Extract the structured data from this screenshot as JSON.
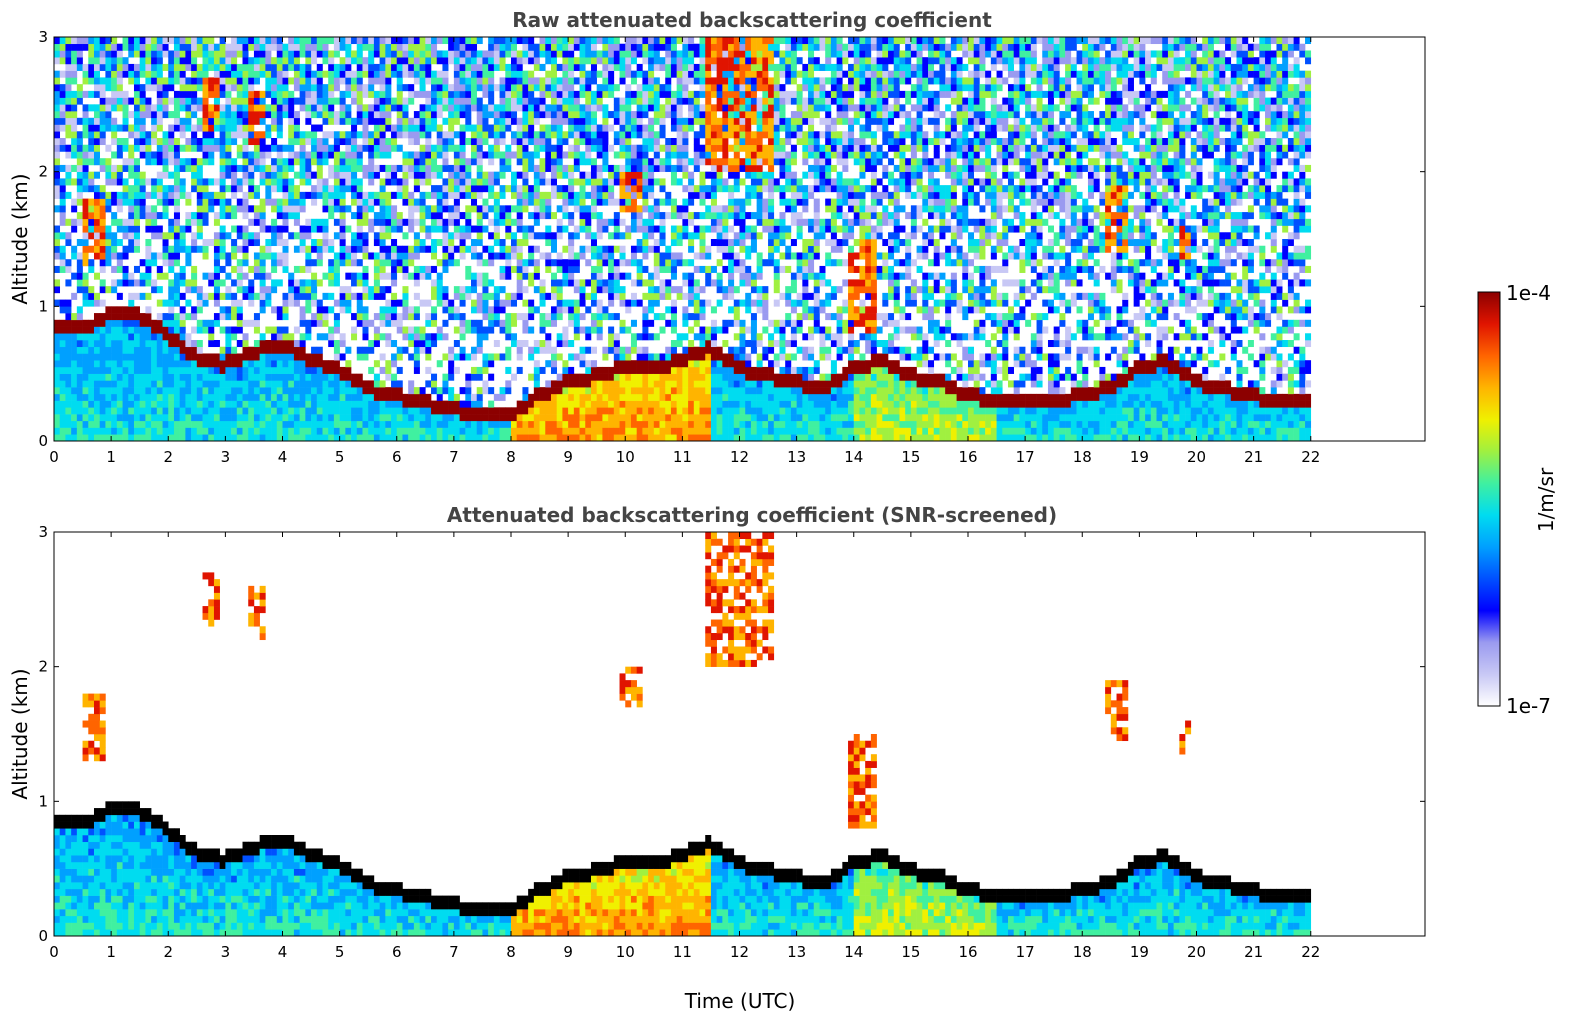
{
  "colors": {
    "background": "#ffffff",
    "title": "#444444",
    "colormap": [
      "#ffffff",
      "#c8c8f5",
      "#9a9af0",
      "#0000ff",
      "#0050ff",
      "#00a0ff",
      "#00dcf0",
      "#40f0a0",
      "#a0f040",
      "#f0f000",
      "#ffb400",
      "#ff6400",
      "#e01400",
      "#8c0000"
    ],
    "screened_peak": "#000000"
  },
  "chart_data": [
    {
      "type": "heatmap",
      "title": "Raw attenuated backscattering coefficient",
      "xlabel": "",
      "ylabel": "Altitude (km)",
      "xlim": [
        0,
        24
      ],
      "ylim": [
        0,
        3
      ],
      "xticks": [
        "0",
        "1",
        "2",
        "3",
        "4",
        "5",
        "6",
        "7",
        "8",
        "9",
        "10",
        "11",
        "12",
        "13",
        "14",
        "15",
        "16",
        "17",
        "18",
        "19",
        "20",
        "21",
        "22"
      ],
      "yticks": [
        "0",
        "1",
        "2",
        "3"
      ],
      "data_extent_hours": [
        0,
        22
      ],
      "colorscale": "log",
      "color_range": [
        1e-07,
        0.0001
      ],
      "boundary_layer_top_km": {
        "x": [
          0,
          0.5,
          1,
          1.5,
          2,
          2.5,
          3,
          3.5,
          4,
          4.5,
          5,
          5.5,
          6,
          6.5,
          7,
          7.5,
          8,
          8.5,
          9,
          9.5,
          10,
          10.5,
          11,
          11.5,
          12,
          12.5,
          13,
          13.5,
          14,
          14.5,
          15,
          15.5,
          16,
          16.5,
          17,
          17.5,
          18,
          18.5,
          19,
          19.5,
          20,
          20.5,
          21,
          21.5,
          22
        ],
        "y": [
          0.85,
          0.85,
          0.95,
          0.95,
          0.8,
          0.62,
          0.58,
          0.68,
          0.72,
          0.62,
          0.55,
          0.4,
          0.35,
          0.3,
          0.25,
          0.2,
          0.22,
          0.35,
          0.45,
          0.5,
          0.55,
          0.55,
          0.62,
          0.7,
          0.55,
          0.5,
          0.45,
          0.4,
          0.55,
          0.6,
          0.5,
          0.45,
          0.35,
          0.32,
          0.3,
          0.32,
          0.35,
          0.42,
          0.55,
          0.6,
          0.45,
          0.4,
          0.35,
          0.3,
          0.3
        ]
      },
      "cloud_features": [
        {
          "x": [
            0.5,
            0.9
          ],
          "y": [
            1.3,
            1.8
          ]
        },
        {
          "x": [
            2.6,
            2.9
          ],
          "y": [
            2.3,
            2.7
          ]
        },
        {
          "x": [
            3.4,
            3.7
          ],
          "y": [
            2.2,
            2.6
          ]
        },
        {
          "x": [
            9.9,
            10.3
          ],
          "y": [
            1.7,
            2.0
          ]
        },
        {
          "x": [
            11.4,
            12.6
          ],
          "y": [
            2.0,
            3.0
          ]
        },
        {
          "x": [
            13.9,
            14.4
          ],
          "y": [
            0.8,
            1.5
          ]
        },
        {
          "x": [
            18.4,
            18.8
          ],
          "y": [
            1.4,
            1.9
          ]
        },
        {
          "x": [
            19.7,
            19.95
          ],
          "y": [
            1.35,
            1.6
          ]
        }
      ]
    },
    {
      "type": "heatmap",
      "title": "Attenuated backscattering coefficient (SNR-screened)",
      "xlabel": "Time (UTC)",
      "ylabel": "Altitude (km)",
      "xlim": [
        0,
        24
      ],
      "ylim": [
        0,
        3
      ],
      "xticks": [
        "0",
        "1",
        "2",
        "3",
        "4",
        "5",
        "6",
        "7",
        "8",
        "9",
        "10",
        "11",
        "12",
        "13",
        "14",
        "15",
        "16",
        "17",
        "18",
        "19",
        "20",
        "21",
        "22"
      ],
      "yticks": [
        "0",
        "1",
        "2",
        "3"
      ],
      "data_extent_hours": [
        0,
        22
      ],
      "colorscale": "log",
      "color_range": [
        1e-07,
        0.0001
      ]
    }
  ],
  "colorbar": {
    "max_label": "1e-4",
    "min_label": "1e-7",
    "unit_label": "1/m/sr"
  }
}
